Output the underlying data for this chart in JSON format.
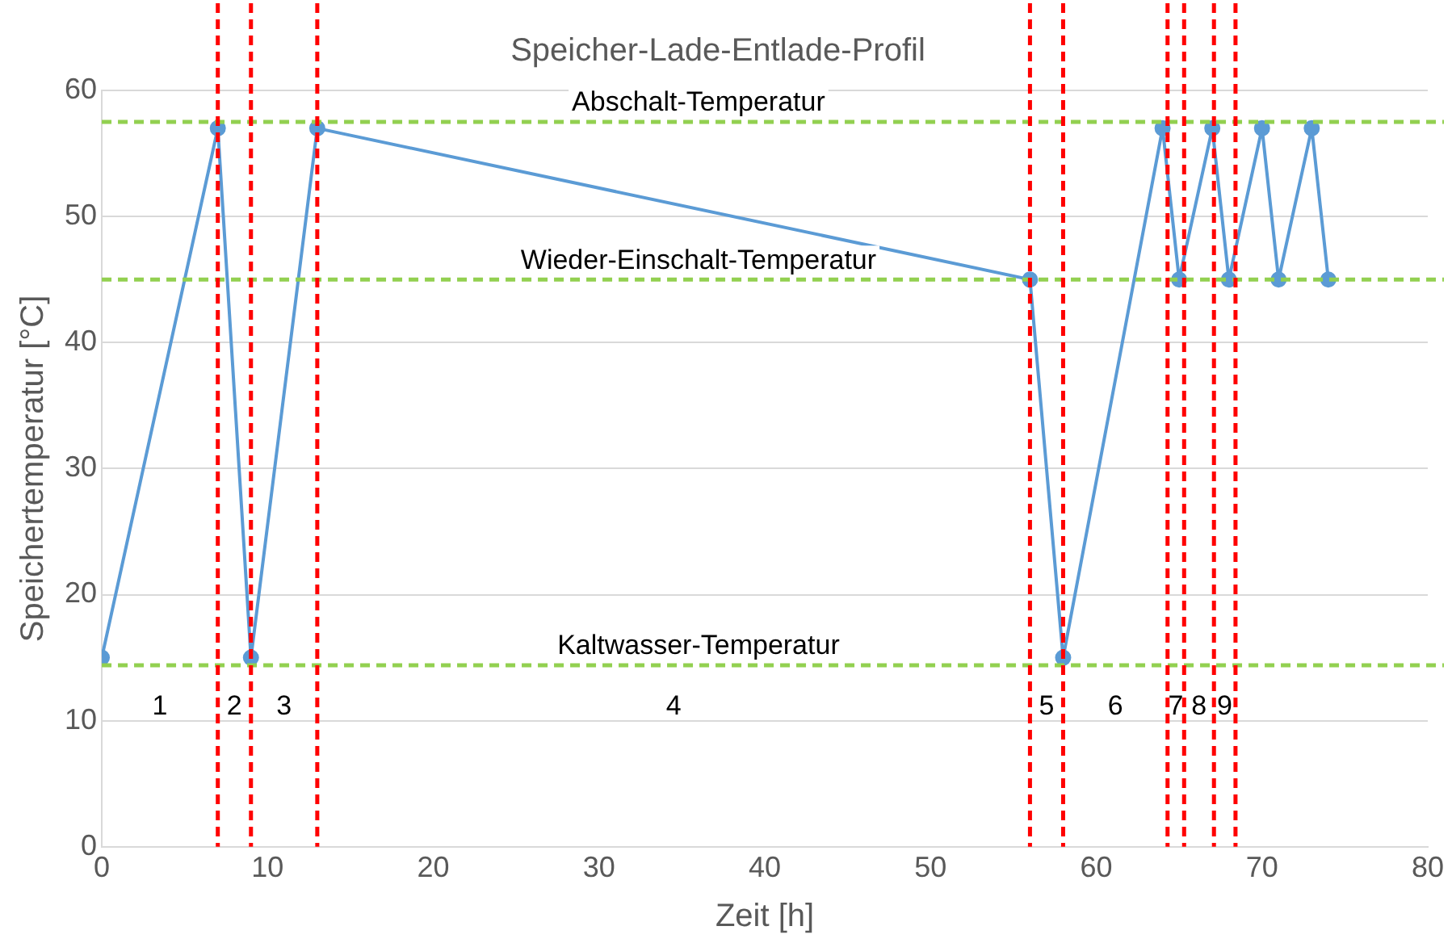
{
  "chart_data": {
    "type": "line",
    "title": "Speicher-Lade-Entlade-Profil",
    "xlabel": "Zeit [h]",
    "ylabel": "Speichertemperatur [°C]",
    "x": [
      0,
      7,
      9,
      13,
      56,
      58,
      64,
      65,
      67,
      68,
      70,
      71,
      73,
      74
    ],
    "series": [
      {
        "color": "#5b9bd5",
        "values": [
          15,
          57,
          15,
          57,
          45,
          15,
          57,
          45,
          57,
          45,
          57,
          45,
          57,
          45
        ]
      }
    ],
    "xlim": [
      0,
      80
    ],
    "xticks": [
      0,
      10,
      20,
      30,
      40,
      50,
      60,
      70,
      80
    ],
    "ylim": [
      0,
      60
    ],
    "yticks": [
      0,
      10,
      20,
      30,
      40,
      50,
      60
    ],
    "grid": "y",
    "legend": false,
    "marker": "circle",
    "line_style": "solid",
    "ref_lines": [
      {
        "axis": "y",
        "value": 57.5,
        "label": "Abschalt-Temperatur",
        "color": "#92d050",
        "line_style": "dashed"
      },
      {
        "axis": "y",
        "value": 45,
        "label": "Wieder-Einschalt-Temperatur",
        "color": "#92d050",
        "line_style": "dashed"
      },
      {
        "axis": "y",
        "value": 14.4,
        "label": "Kaltwasser-Temperatur",
        "color": "#92d050",
        "line_style": "dashed"
      },
      {
        "axis": "x",
        "value": 7,
        "color": "#ff0000",
        "line_style": "dashed"
      },
      {
        "axis": "x",
        "value": 9,
        "color": "#ff0000",
        "line_style": "dashed"
      },
      {
        "axis": "x",
        "value": 13,
        "color": "#ff0000",
        "line_style": "dashed"
      },
      {
        "axis": "x",
        "value": 56,
        "color": "#ff0000",
        "line_style": "dashed"
      },
      {
        "axis": "x",
        "value": 58,
        "color": "#ff0000",
        "line_style": "dashed"
      },
      {
        "axis": "x",
        "value": 64.3,
        "color": "#ff0000",
        "line_style": "dashed"
      },
      {
        "axis": "x",
        "value": 65.3,
        "color": "#ff0000",
        "line_style": "dashed"
      },
      {
        "axis": "x",
        "value": 67.1,
        "color": "#ff0000",
        "line_style": "dashed"
      },
      {
        "axis": "x",
        "value": 68.4,
        "color": "#ff0000",
        "line_style": "dashed"
      }
    ],
    "annotations": [
      "1",
      "2",
      "3",
      "4",
      "5",
      "6",
      "7",
      "8",
      "9"
    ]
  }
}
